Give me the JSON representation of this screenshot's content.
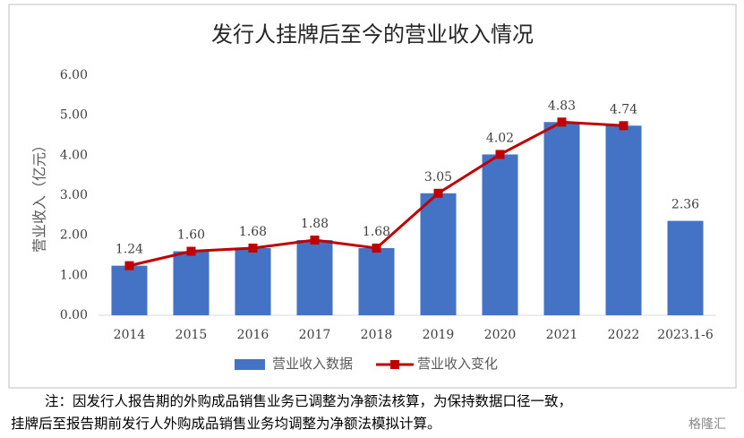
{
  "chart_data": {
    "type": "bar_line",
    "title": "发行人挂牌后至今的营业收入情况",
    "y_label": "营业收入（亿元）",
    "categories": [
      "2014",
      "2015",
      "2016",
      "2017",
      "2018",
      "2019",
      "2020",
      "2021",
      "2022",
      "2023.1-6"
    ],
    "series": [
      {
        "name": "营业收入数据",
        "type": "bar",
        "color": "#4472c4",
        "values": [
          1.24,
          1.6,
          1.68,
          1.88,
          1.68,
          3.05,
          4.02,
          4.83,
          4.74,
          2.36
        ],
        "value_labels": [
          "1.24",
          "1.60",
          "1.68",
          "1.88",
          "1.68",
          "3.05",
          "4.02",
          "4.83",
          "4.74",
          "2.36"
        ]
      },
      {
        "name": "营业收入变化",
        "type": "line",
        "color": "#c00000",
        "values": [
          1.24,
          1.6,
          1.68,
          1.88,
          1.68,
          3.05,
          4.02,
          4.83,
          4.74,
          null
        ]
      }
    ],
    "ylim": [
      0,
      6
    ],
    "yticks": [
      {
        "value": 0,
        "label": "0.00"
      },
      {
        "value": 1,
        "label": "1.00"
      },
      {
        "value": 2,
        "label": "2.00"
      },
      {
        "value": 3,
        "label": "3.00"
      },
      {
        "value": 4,
        "label": "4.00"
      },
      {
        "value": 5,
        "label": "5.00"
      },
      {
        "value": 6,
        "label": "6.00"
      }
    ],
    "grid": false,
    "legend": "bottom",
    "footnote": [
      "注：因发行人报告期的外购成品销售业务已调整为净额法核算，为保持数据口径一致，",
      "挂牌后至报告期前发行人外购成品销售业务均调整为净额法模拟计算。"
    ],
    "watermark": "格隆汇"
  }
}
